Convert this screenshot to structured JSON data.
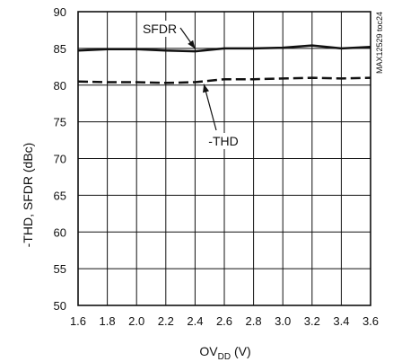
{
  "chart_data": {
    "type": "line",
    "xlabel_main": "OV",
    "xlabel_sub": "DD",
    "xlabel_tail": " (V)",
    "ylabel": "-THD, SFDR (dBc)",
    "xlim": [
      1.6,
      3.6
    ],
    "ylim": [
      50,
      90
    ],
    "xticks": [
      "1.6",
      "1.8",
      "2.0",
      "2.2",
      "2.4",
      "2.6",
      "2.8",
      "3.0",
      "3.2",
      "3.4",
      "3.6"
    ],
    "yticks": [
      "50",
      "55",
      "60",
      "65",
      "70",
      "75",
      "80",
      "85",
      "90"
    ],
    "x_gridlines": [
      1.6,
      1.8,
      2.0,
      2.2,
      2.4,
      2.6,
      2.8,
      3.0,
      3.2,
      3.4,
      3.6
    ],
    "y_gridlines": [
      50,
      55,
      60,
      65,
      70,
      75,
      80,
      85,
      90
    ],
    "grid": true,
    "series": [
      {
        "name": "SFDR",
        "style": "solid",
        "x": [
          1.6,
          1.8,
          2.0,
          2.2,
          2.4,
          2.6,
          2.8,
          3.0,
          3.2,
          3.4,
          3.6
        ],
        "y": [
          84.7,
          84.9,
          84.9,
          84.7,
          84.6,
          85.0,
          85.0,
          85.1,
          85.4,
          85.0,
          85.2
        ]
      },
      {
        "name": "-THD",
        "style": "dashed",
        "x": [
          1.6,
          1.8,
          2.0,
          2.2,
          2.4,
          2.6,
          2.8,
          3.0,
          3.2,
          3.4,
          3.6
        ],
        "y": [
          80.5,
          80.4,
          80.4,
          80.3,
          80.4,
          80.8,
          80.8,
          80.9,
          81.0,
          80.9,
          81.0
        ]
      }
    ],
    "annotations": [
      {
        "label": "SFDR",
        "target_x": 2.4,
        "target_y": 84.6
      },
      {
        "label": "-THD",
        "target_x": 2.46,
        "target_y": 80.5
      }
    ],
    "side_code": "MAX12529 toc24",
    "colors": {
      "line": "#111111",
      "grid": "#111111",
      "background": "#ffffff"
    }
  }
}
